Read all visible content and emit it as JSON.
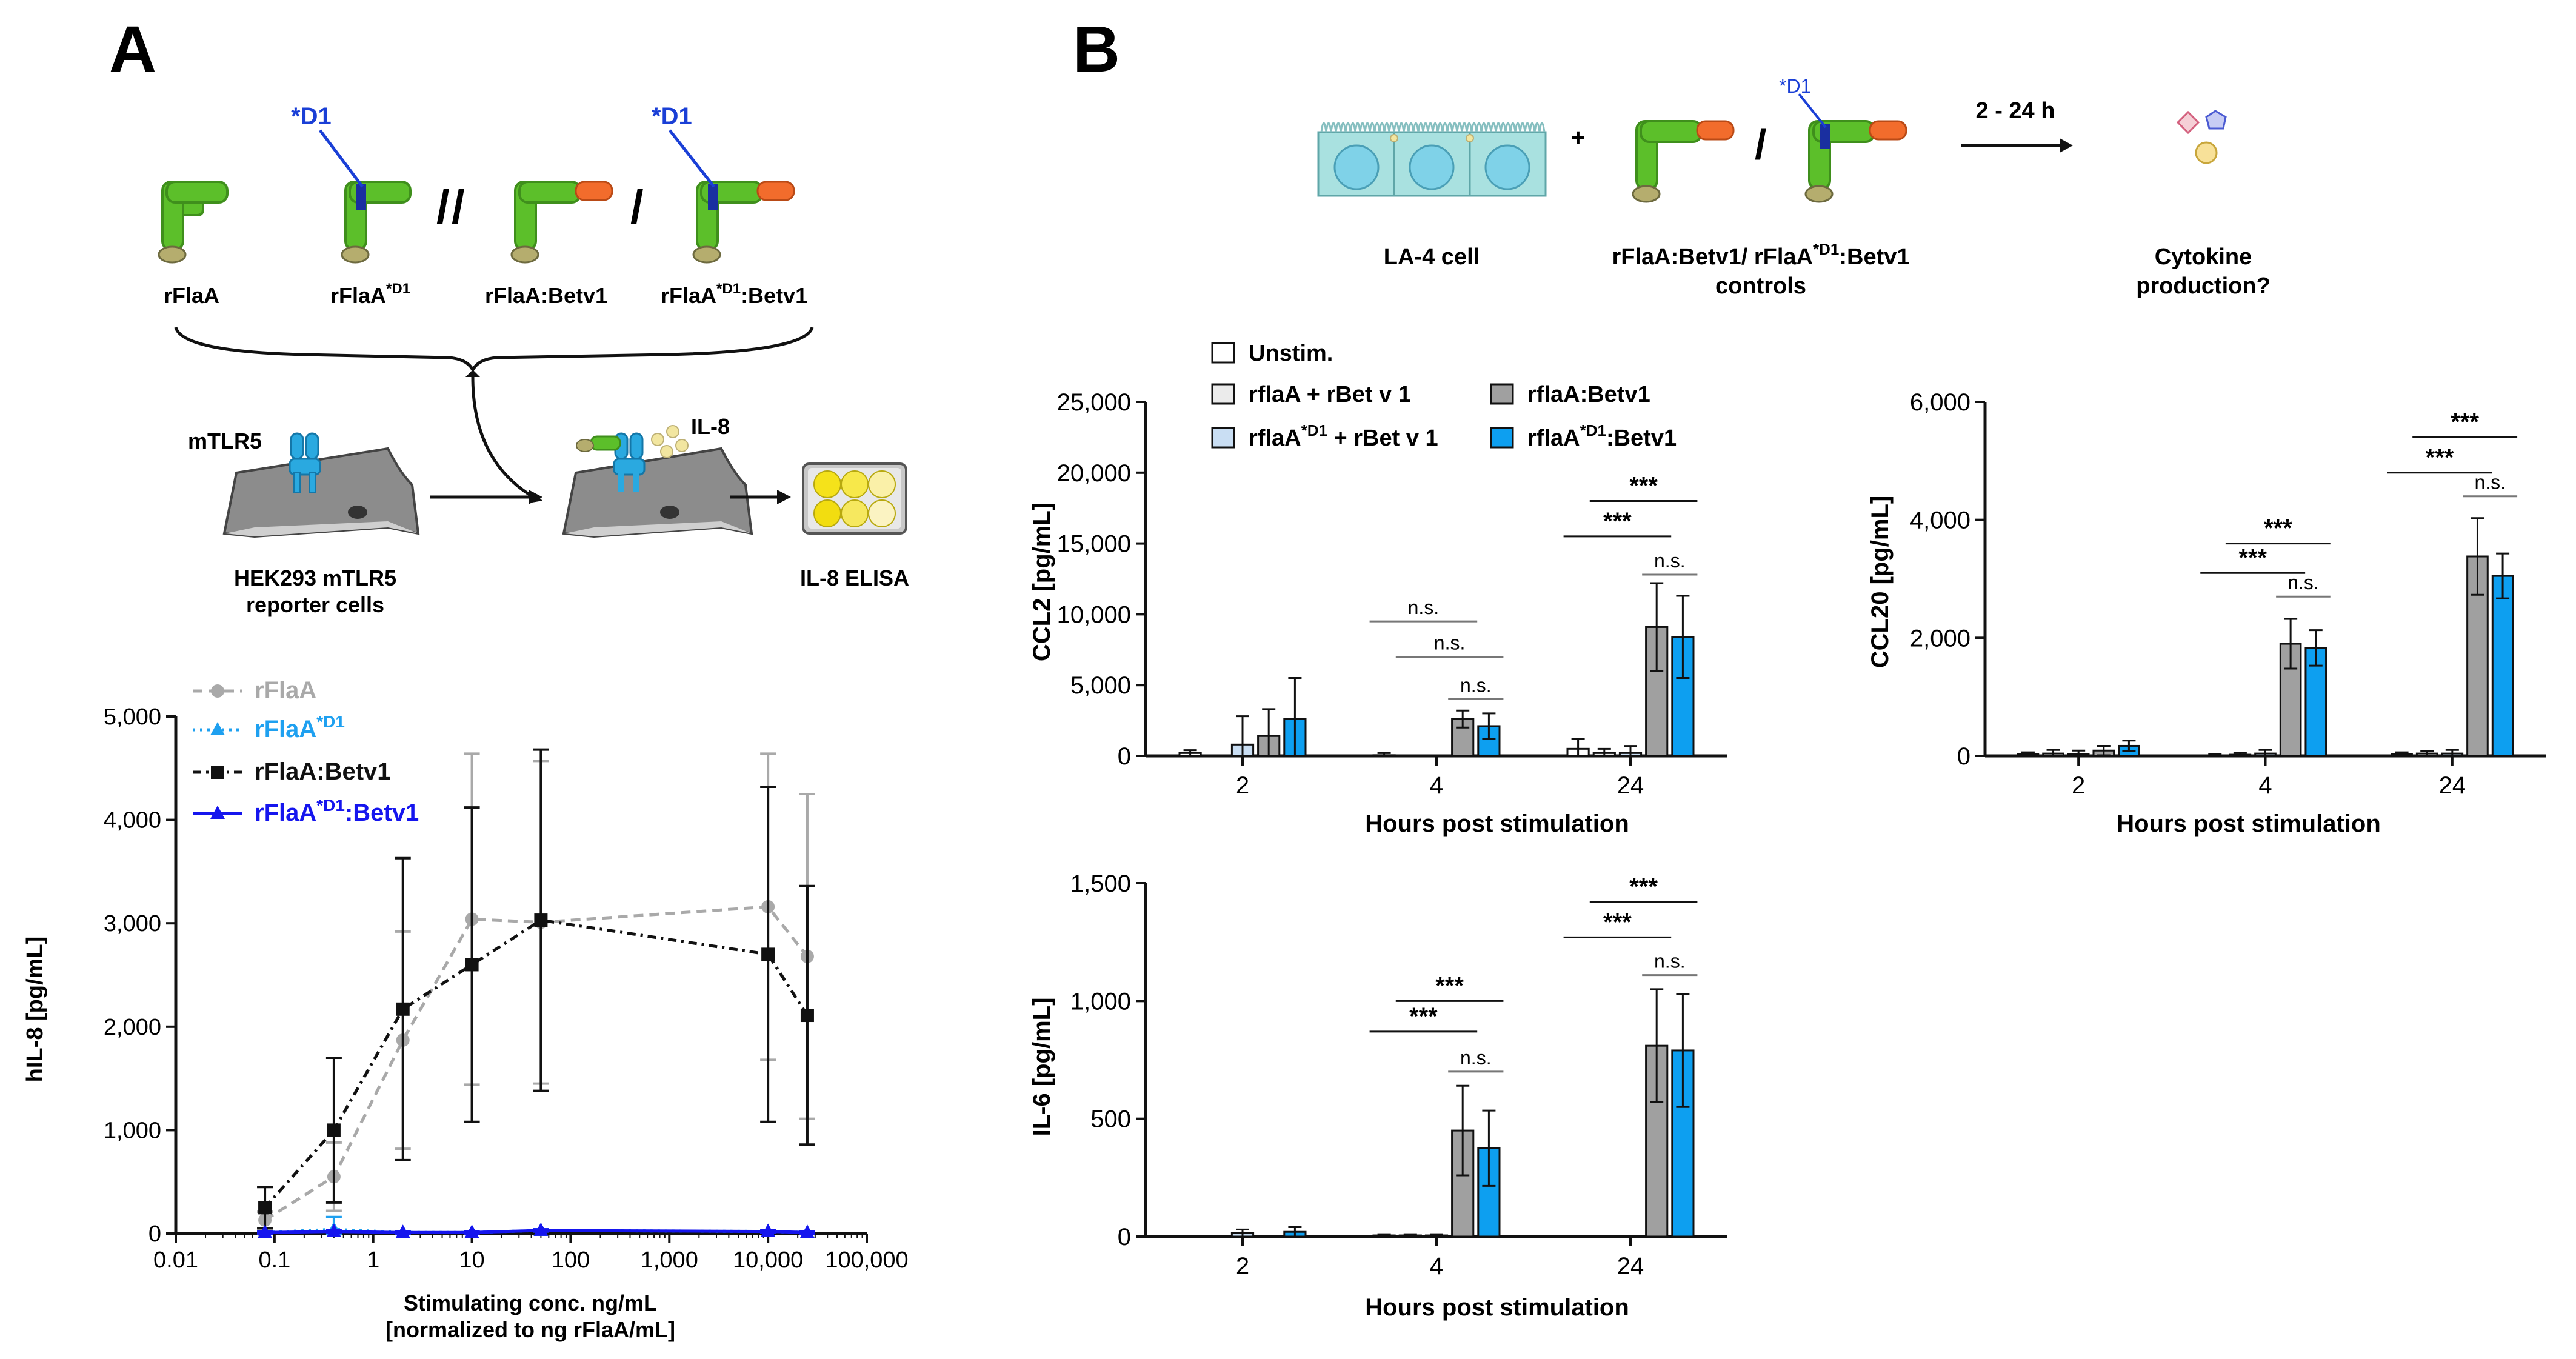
{
  "panels": {
    "a": "A",
    "b": "B"
  },
  "colors": {
    "green": "#5cbf2a",
    "green_dark": "#3f8f1c",
    "orange": "#f26c2c",
    "tan": "#b5ad6e",
    "d1_blue": "#1a3fd6",
    "tlr_cyan": "#2aa9e0",
    "rflaa_grey": "#a9a9a9",
    "rflaa_d1_cyan": "#1ea0f0",
    "betv1_black": "#111111",
    "d1betv1_blue": "#1515ee",
    "bar_unstim": "#ffffff",
    "bar_mix": "#ebebeb",
    "bar_mix_d1": "#c9def3",
    "bar_grey": "#a0a0a0",
    "bar_cyan": "#0d9ff0"
  },
  "schematic_a": {
    "constructs": [
      {
        "label": "rFlaA",
        "sup": "",
        "suffix": ""
      },
      {
        "label": "rFlaA",
        "sup": "*D1",
        "suffix": ""
      },
      {
        "label": "rFlaA:Betv1",
        "sup": "",
        "suffix": ""
      },
      {
        "label": "rFlaA",
        "sup": "*D1",
        "suffix": ":Betv1"
      }
    ],
    "mutation_label": "*D1",
    "separator": "/",
    "receptor_label": "mTLR5",
    "cells_label_1": "HEK293 mTLR5",
    "cells_label_2": "reporter cells",
    "il8_label": "IL-8",
    "elisa_label": "IL-8 ELISA"
  },
  "schematic_b": {
    "cell_label": "LA-4 cell",
    "plus": "+",
    "slash": "/",
    "constructs_label_1_a": "rFlaA:Betv1/ rFlaA",
    "constructs_label_1_sup": "*D1",
    "constructs_label_1_b": ":Betv1",
    "constructs_label_2": "controls",
    "mutation_label": "*D1",
    "time_label": "2 - 24 h",
    "outcome_1": "Cytokine",
    "outcome_2": "production?"
  },
  "chart_data": [
    {
      "type": "line",
      "id": "A-dose-response",
      "xscale": "log",
      "xlim": [
        0.01,
        100000
      ],
      "ylim": [
        0,
        5000
      ],
      "xticks": [
        "0.01",
        "0.1",
        "1",
        "10",
        "100",
        "1,000",
        "10,000",
        "100,000"
      ],
      "yticks": [
        "0",
        "1,000",
        "2,000",
        "3,000",
        "4,000",
        "5,000"
      ],
      "ylabel": "hIL-8 [pg/mL]",
      "xlabel_1": "Stimulating conc. ng/mL",
      "xlabel_2": "[normalized to ng rFlaA/mL]",
      "legend_position": "top-left",
      "x": [
        0.08,
        0.4,
        2,
        10,
        50,
        10000,
        25000
      ],
      "series": [
        {
          "name": "rFlaA",
          "sup": "",
          "suffix": "",
          "marker": "circle",
          "dash": "dashed",
          "color": "#a9a9a9",
          "values": [
            130,
            550,
            1870,
            3040,
            3010,
            3160,
            2680
          ],
          "errors": [
            80,
            330,
            1050,
            1600,
            1560,
            1480,
            1570
          ]
        },
        {
          "name": "rFlaA",
          "sup": "*D1",
          "suffix": "",
          "marker": "triangle",
          "dash": "dotted",
          "color": "#1ea0f0",
          "values": [
            10,
            40,
            10,
            10,
            30,
            20,
            10
          ],
          "errors": [
            10,
            120,
            10,
            10,
            10,
            10,
            10
          ]
        },
        {
          "name": "rFlaA:Betv1",
          "sup": "",
          "suffix": "",
          "marker": "square",
          "dash": "dashdot",
          "color": "#111111",
          "values": [
            250,
            1000,
            2170,
            2600,
            3030,
            2700,
            2110
          ],
          "errors": [
            200,
            700,
            1460,
            1520,
            1650,
            1620,
            1250
          ]
        },
        {
          "name": "rFlaA",
          "sup": "*D1",
          "suffix": ":Betv1",
          "marker": "triangle",
          "dash": "solid",
          "color": "#1515ee",
          "values": [
            10,
            20,
            10,
            10,
            30,
            20,
            10
          ],
          "errors": [
            10,
            10,
            10,
            10,
            10,
            10,
            10
          ]
        }
      ]
    },
    {
      "type": "bar",
      "id": "B-CCL2",
      "ylabel": "CCL2 [pg/mL]",
      "xlabel": "Hours post stimulation",
      "categories": [
        "2",
        "4",
        "24"
      ],
      "ylim": [
        0,
        25000
      ],
      "yticks": [
        "0",
        "5,000",
        "10,000",
        "15,000",
        "20,000",
        "25,000"
      ],
      "legend": [
        {
          "name": "Unstim.",
          "sup": "",
          "suffix": ""
        },
        {
          "name": "rflaA + rBet v 1",
          "sup": "",
          "suffix": ""
        },
        {
          "name": "rflaA:Betv1",
          "sup": "",
          "suffix": ""
        },
        {
          "name": "rflaA",
          "sup": "*D1",
          "suffix": " + rBet v 1"
        },
        {
          "name": "rflaA",
          "sup": "*D1",
          "suffix": ":Betv1"
        }
      ],
      "series": [
        {
          "name": "Unstim.",
          "values": [
            200,
            50,
            500
          ],
          "errors": [
            200,
            150,
            700
          ]
        },
        {
          "name": "rflaA + rBet v 1",
          "values": [
            0,
            0,
            200
          ],
          "errors": [
            0,
            0,
            300
          ]
        },
        {
          "name": "rflaA*D1 + rBet v 1",
          "values": [
            800,
            0,
            200
          ],
          "errors": [
            2000,
            0,
            500
          ]
        },
        {
          "name": "rflaA:Betv1",
          "values": [
            1400,
            2600,
            9100
          ],
          "errors": [
            1900,
            600,
            3100
          ]
        },
        {
          "name": "rflaA*D1:Betv1",
          "values": [
            2600,
            2100,
            8400
          ],
          "errors": [
            2900,
            900,
            2900
          ]
        }
      ],
      "significance": [
        {
          "cat": 1,
          "from": 0,
          "to": 3,
          "label": "n.s.",
          "y": 9500
        },
        {
          "cat": 1,
          "from": 1,
          "to": 4,
          "label": "n.s.",
          "y": 7000
        },
        {
          "cat": 1,
          "from": 3,
          "to": 4,
          "label": "n.s.",
          "y": 4000
        },
        {
          "cat": 2,
          "from": 0,
          "to": 3,
          "label": "***",
          "y": 15500
        },
        {
          "cat": 2,
          "from": 1,
          "to": 4,
          "label": "***",
          "y": 18000
        },
        {
          "cat": 2,
          "from": 3,
          "to": 4,
          "label": "n.s.",
          "y": 12800
        }
      ]
    },
    {
      "type": "bar",
      "id": "B-CCL20",
      "ylabel": "CCL20 [pg/mL]",
      "xlabel": "Hours post stimulation",
      "categories": [
        "2",
        "4",
        "24"
      ],
      "ylim": [
        0,
        6000
      ],
      "yticks": [
        "0",
        "2,000",
        "4,000",
        "6,000"
      ],
      "series": [
        {
          "name": "Unstim.",
          "values": [
            30,
            10,
            30
          ],
          "errors": [
            30,
            20,
            30
          ]
        },
        {
          "name": "rflaA + rBet v 1",
          "values": [
            40,
            20,
            40
          ],
          "errors": [
            60,
            30,
            40
          ]
        },
        {
          "name": "rflaA*D1 + rBet v 1",
          "values": [
            30,
            40,
            40
          ],
          "errors": [
            60,
            60,
            60
          ]
        },
        {
          "name": "rflaA:Betv1",
          "values": [
            90,
            1900,
            3380
          ],
          "errors": [
            80,
            420,
            650
          ]
        },
        {
          "name": "rflaA*D1:Betv1",
          "values": [
            170,
            1830,
            3050
          ],
          "errors": [
            90,
            300,
            380
          ]
        }
      ],
      "significance": [
        {
          "cat": 1,
          "from": 0,
          "to": 3,
          "label": "***",
          "y": 3100
        },
        {
          "cat": 1,
          "from": 1,
          "to": 4,
          "label": "***",
          "y": 3600
        },
        {
          "cat": 1,
          "from": 3,
          "to": 4,
          "label": "n.s.",
          "y": 2700
        },
        {
          "cat": 2,
          "from": 0,
          "to": 3,
          "label": "***",
          "y": 4800
        },
        {
          "cat": 2,
          "from": 1,
          "to": 4,
          "label": "***",
          "y": 5400
        },
        {
          "cat": 2,
          "from": 3,
          "to": 4,
          "label": "n.s.",
          "y": 4400
        }
      ]
    },
    {
      "type": "bar",
      "id": "B-IL6",
      "ylabel": "IL-6 [pg/mL]",
      "xlabel": "Hours post stimulation",
      "categories": [
        "2",
        "4",
        "24"
      ],
      "ylim": [
        0,
        1500
      ],
      "yticks": [
        "0",
        "500",
        "1,000",
        "1,500"
      ],
      "series": [
        {
          "name": "Unstim.",
          "values": [
            0,
            5,
            0
          ],
          "errors": [
            0,
            5,
            0
          ]
        },
        {
          "name": "rflaA + rBet v 1",
          "values": [
            0,
            5,
            0
          ],
          "errors": [
            0,
            5,
            0
          ]
        },
        {
          "name": "rflaA*D1 + rBet v 1",
          "values": [
            15,
            5,
            0
          ],
          "errors": [
            15,
            5,
            0
          ]
        },
        {
          "name": "rflaA:Betv1",
          "values": [
            0,
            450,
            810
          ],
          "errors": [
            0,
            190,
            240
          ]
        },
        {
          "name": "rflaA*D1:Betv1",
          "values": [
            20,
            375,
            790
          ],
          "errors": [
            20,
            160,
            240
          ]
        }
      ],
      "significance": [
        {
          "cat": 1,
          "from": 0,
          "to": 3,
          "label": "***",
          "y": 870
        },
        {
          "cat": 1,
          "from": 1,
          "to": 4,
          "label": "***",
          "y": 1000
        },
        {
          "cat": 1,
          "from": 3,
          "to": 4,
          "label": "n.s.",
          "y": 700
        },
        {
          "cat": 2,
          "from": 0,
          "to": 3,
          "label": "***",
          "y": 1270
        },
        {
          "cat": 2,
          "from": 1,
          "to": 4,
          "label": "***",
          "y": 1420
        },
        {
          "cat": 2,
          "from": 3,
          "to": 4,
          "label": "n.s.",
          "y": 1110
        }
      ]
    }
  ]
}
